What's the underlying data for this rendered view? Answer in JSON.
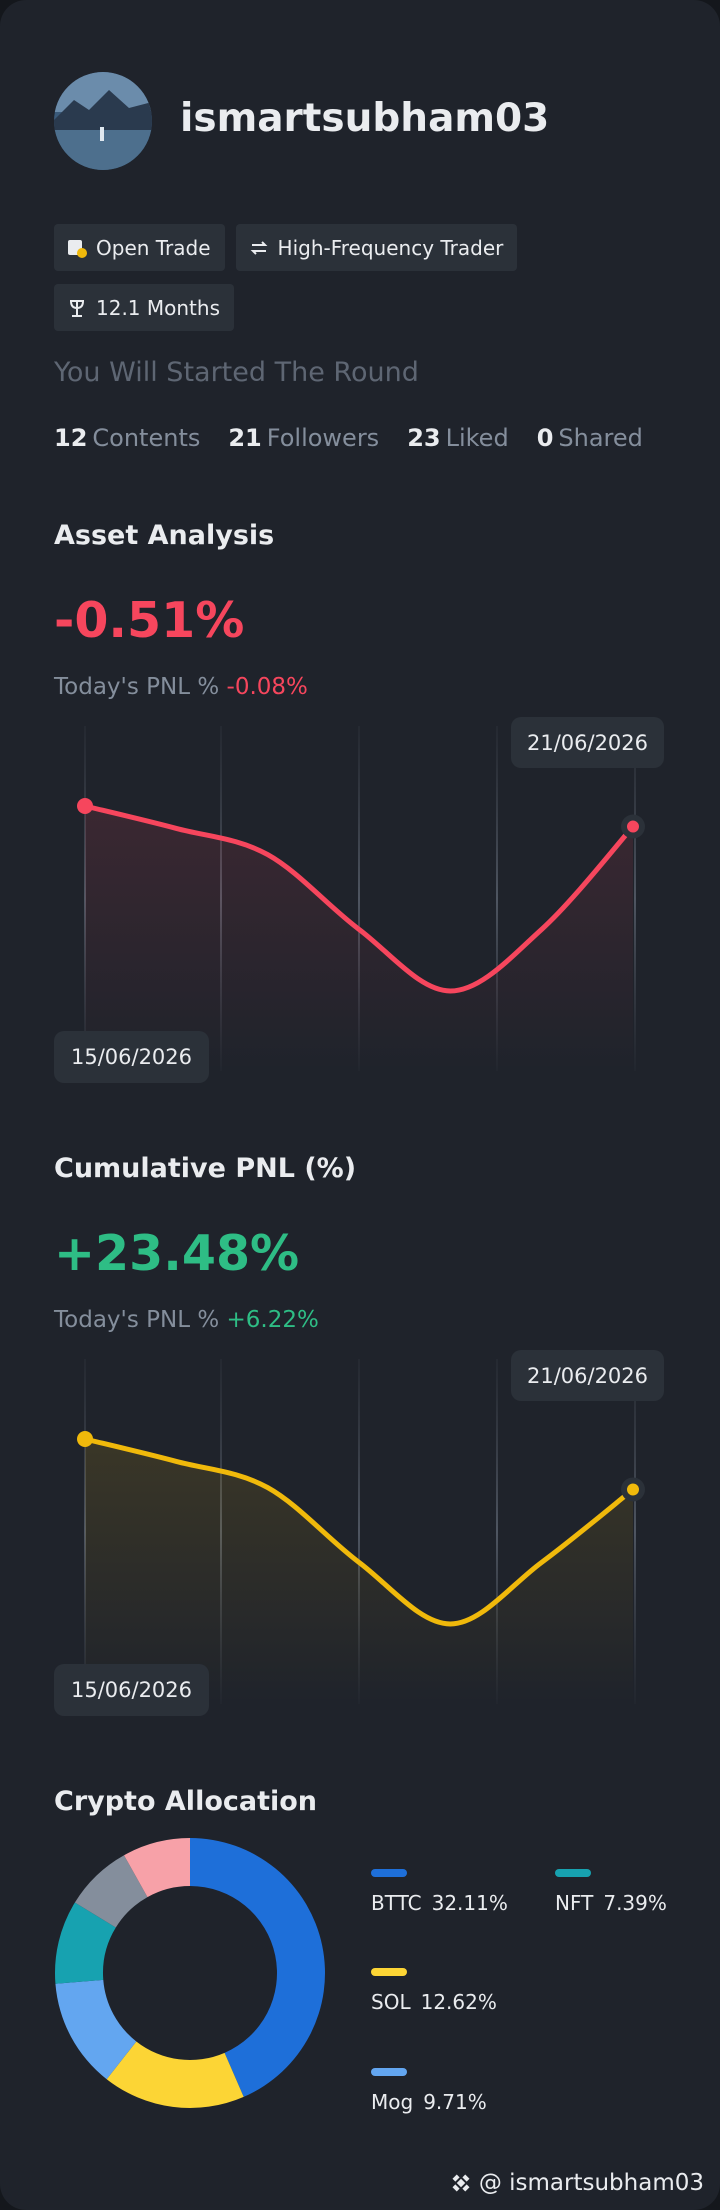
{
  "profile": {
    "username": "ismartsubham03",
    "tags": [
      "Open Trade",
      "High-Frequency Trader",
      "12.1 Months"
    ],
    "subtitle": "You Will Started The Round",
    "stats": [
      {
        "value": 12,
        "label": "Contents"
      },
      {
        "value": 21,
        "label": "Followers"
      },
      {
        "value": 23,
        "label": "Liked"
      },
      {
        "value": 0,
        "label": "Shared"
      }
    ]
  },
  "asset_analysis": {
    "title": "Asset Analysis",
    "value": "-0.51%",
    "pnl_label": "Today's PNL %",
    "pnl_value": "-0.08%",
    "chart": {
      "type": "line",
      "color": "#f6465d",
      "start_label": "15/06/2026",
      "end_label": "21/06/2026",
      "values": [
        0,
        -0.12,
        -0.26,
        -0.66,
        -0.99,
        -0.66,
        -0.11
      ]
    }
  },
  "cumulative_pnl": {
    "title": "Cumulative PNL (%)",
    "value": "+23.48%",
    "pnl_label": "Today's PNL %",
    "pnl_value": "+6.22%",
    "chart": {
      "type": "line",
      "color": "#f0b90b",
      "start_label": "15/06/2026",
      "end_label": "21/06/2026",
      "values": [
        0,
        -0.12,
        -0.26,
        -0.66,
        -0.99,
        -0.66,
        -0.27
      ]
    }
  },
  "crypto_allocation": {
    "title": "Crypto Allocation",
    "chart": {
      "type": "donut",
      "segments": [
        {
          "name": "BTTC",
          "value": 32.11,
          "value_label": "32.11%",
          "color": "#1e6fd9"
        },
        {
          "name": "SOL",
          "value": 12.62,
          "value_label": "12.62%",
          "color": "#fcd535"
        },
        {
          "name": "Mog",
          "value": 9.71,
          "value_label": "9.71%",
          "color": "#63a6f0"
        },
        {
          "name": "NFT",
          "value": 7.39,
          "value_label": "7.39%",
          "color": "#17a2b0"
        },
        {
          "name": null,
          "value": 6,
          "color": "#848e9c"
        },
        {
          "name": null,
          "value": 6,
          "color": "#f7a1a8"
        }
      ]
    }
  },
  "footer": "@ ismartsubham03"
}
